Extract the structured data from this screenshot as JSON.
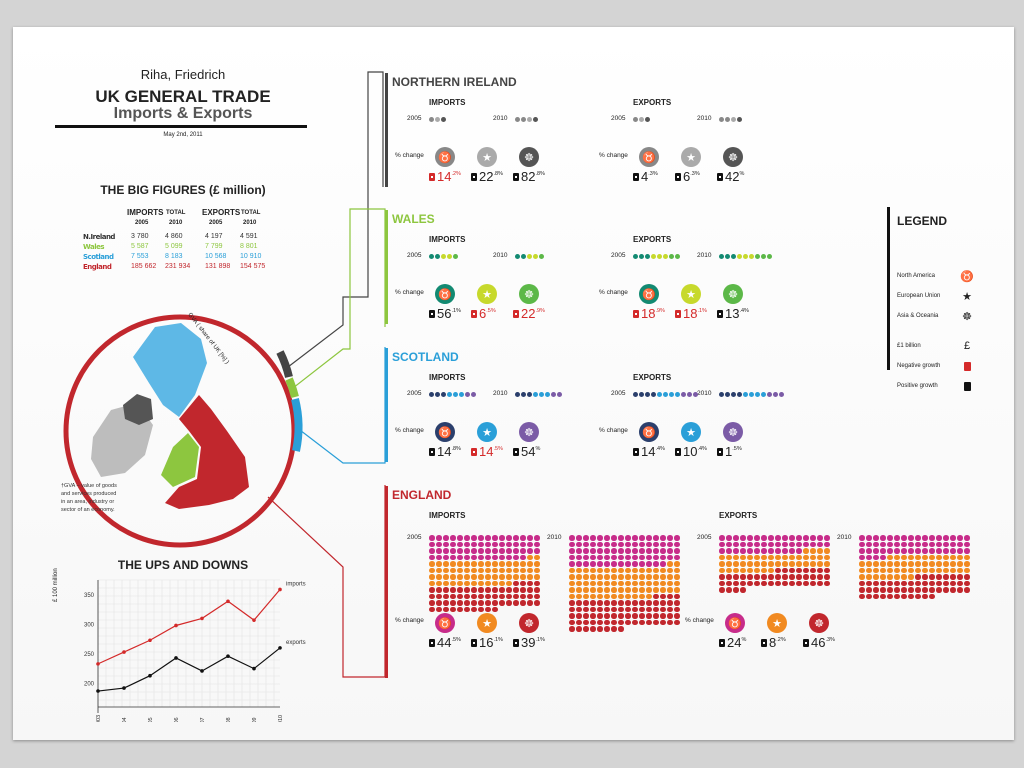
{
  "header": {
    "author": "Riha, Friedrich",
    "title_line1": "UK GENERAL TRADE",
    "title_line2": "Imports & Exports",
    "date": "May 2nd, 2011"
  },
  "big_figures": {
    "title": "THE BIG FIGURES (£ million)",
    "imports_label": "IMPORTS",
    "exports_label": "EXPORTS",
    "total_label": "TOTAL",
    "year_a": "2005",
    "year_b": "2010",
    "rows": [
      {
        "name": "N.Ireland",
        "color": "#333333",
        "imp_2005": "3 780",
        "imp_2010": "4 860",
        "exp_2005": "4 197",
        "exp_2010": "4 591"
      },
      {
        "name": "Wales",
        "color": "#8dc63f",
        "imp_2005": "5 587",
        "imp_2010": "5 099",
        "exp_2005": "7 799",
        "exp_2010": "8 801"
      },
      {
        "name": "Scotland",
        "color": "#2a9fd8",
        "imp_2005": "7 553",
        "imp_2010": "8 183",
        "exp_2005": "10  568",
        "exp_2010": "10 910"
      },
      {
        "name": "England",
        "color": "#c1272d",
        "imp_2005": "185 662",
        "imp_2010": "231 934",
        "exp_2005": "131 898",
        "exp_2010": "154 575"
      }
    ]
  },
  "map": {
    "gva_arc_label": "GVA ( share of UK [%] )",
    "gva_note": "†GVA – value of goods and services produced in an area, industry or sector of an economy."
  },
  "ups_downs": {
    "title": "THE UPS AND DOWNS",
    "ylabel": "£ 100 million"
  },
  "chart_data": {
    "type": "line",
    "title": "THE UPS AND DOWNS",
    "xlabel": "",
    "ylabel": "£ 100 million",
    "x": [
      "2003",
      "'04",
      "'05",
      "'06",
      "'07",
      "'08",
      "'09",
      "2010"
    ],
    "series": [
      {
        "name": "imports",
        "color": "#d42a2a",
        "values": [
          233,
          253,
          273,
          298,
          310,
          339,
          307,
          359
        ]
      },
      {
        "name": "exports",
        "color": "#111111",
        "values": [
          187,
          192,
          213,
          243,
          221,
          246,
          225,
          260
        ]
      }
    ],
    "ylim": [
      160,
      375
    ],
    "yticks": [
      200,
      250,
      300,
      350
    ],
    "grid": true,
    "legend": "end-of-line labels"
  },
  "labels": {
    "imports": "IMPORTS",
    "exports": "EXPORTS",
    "pct_change": "% change",
    "year_2005": "2005",
    "year_2010": "2010"
  },
  "regions": [
    {
      "name": "NORTHERN IRELAND",
      "color": "#444444",
      "coin_colors": [
        "#888888",
        "#aaaaaa",
        "#555555"
      ],
      "coins_2005_imp": 3,
      "coins_2010_imp": 4,
      "coins_2005_exp": 3,
      "coins_2010_exp": 4,
      "imports": [
        {
          "major": "14",
          "minor": ".2%",
          "dir": "negative"
        },
        {
          "major": "22",
          "minor": ".8%",
          "dir": "positive"
        },
        {
          "major": "82",
          "minor": ".8%",
          "dir": "positive"
        }
      ],
      "exports": [
        {
          "major": "4",
          "minor": ".3%",
          "dir": "positive"
        },
        {
          "major": "6",
          "minor": ".3%",
          "dir": "positive"
        },
        {
          "major": "42",
          "minor": "%",
          "dir": "positive"
        }
      ]
    },
    {
      "name": "WALES",
      "color": "#8dc63f",
      "coin_colors": [
        "#138a72",
        "#c7d92c",
        "#5cb848"
      ],
      "coins_2005_imp": 5,
      "coins_2010_imp": 5,
      "coins_2005_exp": 8,
      "coins_2010_exp": 9,
      "imports": [
        {
          "major": "56",
          "minor": ".1%",
          "dir": "positive"
        },
        {
          "major": "6",
          "minor": ".5%",
          "dir": "negative"
        },
        {
          "major": "22",
          "minor": ".9%",
          "dir": "negative"
        }
      ],
      "exports": [
        {
          "major": "18",
          "minor": ".9%",
          "dir": "negative"
        },
        {
          "major": "18",
          "minor": ".1%",
          "dir": "negative"
        },
        {
          "major": "13",
          "minor": ".4%",
          "dir": "positive"
        }
      ]
    },
    {
      "name": "SCOTLAND",
      "color": "#2a9fd8",
      "coin_colors": [
        "#2b3f6c",
        "#2a9fd8",
        "#7b5ba6"
      ],
      "coins_2005_imp": 8,
      "coins_2010_imp": 8,
      "coins_2005_exp": 11,
      "coins_2010_exp": 11,
      "imports": [
        {
          "major": "14",
          "minor": ".8%",
          "dir": "positive"
        },
        {
          "major": "14",
          "minor": ".5%",
          "dir": "negative"
        },
        {
          "major": "54",
          "minor": "%",
          "dir": "positive"
        }
      ],
      "exports": [
        {
          "major": "14",
          "minor": ".4%",
          "dir": "positive"
        },
        {
          "major": "10",
          "minor": ".4%",
          "dir": "positive"
        },
        {
          "major": "1",
          "minor": ".5%",
          "dir": "positive"
        }
      ]
    },
    {
      "name": "ENGLAND",
      "color": "#c1272d",
      "coin_colors": [
        "#c72c8a",
        "#f18a21",
        "#c1272d"
      ],
      "coins_2005_imp": 186,
      "coins_2010_imp": 232,
      "coins_2005_exp": 132,
      "coins_2010_exp": 155,
      "imports": [
        {
          "major": "44",
          "minor": ".5%",
          "dir": "positive"
        },
        {
          "major": "16",
          "minor": ".1%",
          "dir": "positive"
        },
        {
          "major": "39",
          "minor": ".1%",
          "dir": "positive"
        }
      ],
      "exports": [
        {
          "major": "24",
          "minor": "%",
          "dir": "positive"
        },
        {
          "major": "8",
          "minor": ".2%",
          "dir": "positive"
        },
        {
          "major": "46",
          "minor": ".3%",
          "dir": "positive"
        }
      ]
    }
  ],
  "legend": {
    "title": "LEGEND",
    "items": [
      {
        "label": "North America",
        "icon": "bull-icon"
      },
      {
        "label": "European Union",
        "icon": "star-icon"
      },
      {
        "label": "Asia & Oceania",
        "icon": "dragon-icon"
      },
      {
        "label": "£1 billion",
        "icon": "pound-icon"
      },
      {
        "label": "Negative growth",
        "icon": "negative-tag-icon"
      },
      {
        "label": "Positive growth",
        "icon": "positive-tag-icon"
      }
    ],
    "negative_color": "#d42a2a",
    "positive_color": "#111111"
  }
}
